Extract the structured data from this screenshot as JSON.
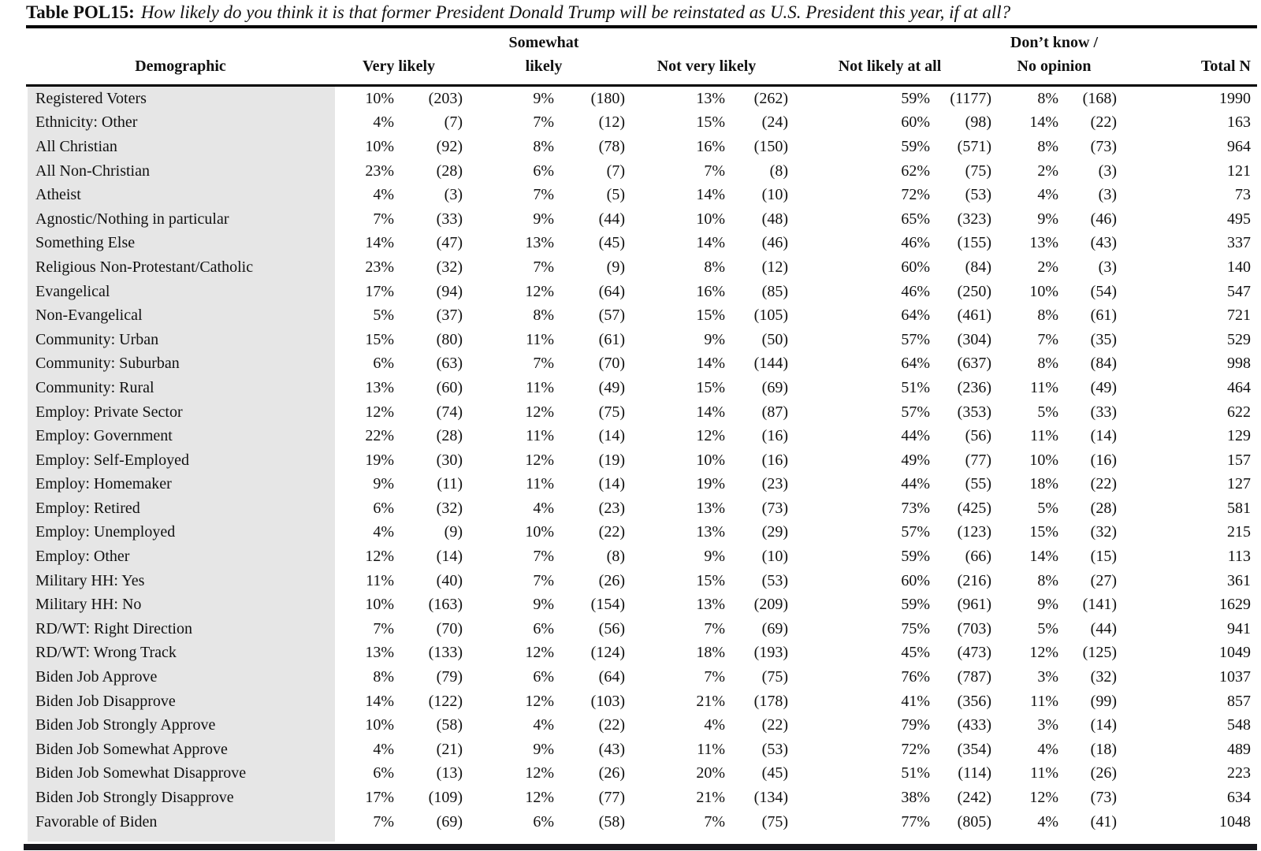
{
  "title": {
    "prefix": "Table POL15:",
    "question": "How likely do you think it is that former President Donald Trump will be reinstated as U.S. President this year, if at all?"
  },
  "header": {
    "demographic": "Demographic",
    "groups": [
      {
        "line1": "",
        "line2": "Very likely"
      },
      {
        "line1": "Somewhat",
        "line2": "likely"
      },
      {
        "line1": "",
        "line2": "Not very likely"
      },
      {
        "line1": "",
        "line2": "Not likely at all"
      },
      {
        "line1": "Don’t know /",
        "line2": "No opinion"
      }
    ],
    "total": "Total N"
  },
  "colors": {
    "row_label_bg": "#e6e6e6",
    "text": "#111111",
    "rule": "#000000"
  },
  "rows": [
    {
      "label": "Registered Voters",
      "values": [
        "10%",
        "(203)",
        "9%",
        "(180)",
        "13%",
        "(262)",
        "59%",
        "(1177)",
        "8%",
        "(168)"
      ],
      "total": "1990"
    },
    {
      "label": "Ethnicity: Other",
      "values": [
        "4%",
        "(7)",
        "7%",
        "(12)",
        "15%",
        "(24)",
        "60%",
        "(98)",
        "14%",
        "(22)"
      ],
      "total": "163"
    },
    {
      "label": "All Christian",
      "values": [
        "10%",
        "(92)",
        "8%",
        "(78)",
        "16%",
        "(150)",
        "59%",
        "(571)",
        "8%",
        "(73)"
      ],
      "total": "964"
    },
    {
      "label": "All Non-Christian",
      "values": [
        "23%",
        "(28)",
        "6%",
        "(7)",
        "7%",
        "(8)",
        "62%",
        "(75)",
        "2%",
        "(3)"
      ],
      "total": "121"
    },
    {
      "label": "Atheist",
      "values": [
        "4%",
        "(3)",
        "7%",
        "(5)",
        "14%",
        "(10)",
        "72%",
        "(53)",
        "4%",
        "(3)"
      ],
      "total": "73"
    },
    {
      "label": "Agnostic/Nothing in particular",
      "values": [
        "7%",
        "(33)",
        "9%",
        "(44)",
        "10%",
        "(48)",
        "65%",
        "(323)",
        "9%",
        "(46)"
      ],
      "total": "495"
    },
    {
      "label": "Something Else",
      "values": [
        "14%",
        "(47)",
        "13%",
        "(45)",
        "14%",
        "(46)",
        "46%",
        "(155)",
        "13%",
        "(43)"
      ],
      "total": "337"
    },
    {
      "label": "Religious Non-Protestant/Catholic",
      "values": [
        "23%",
        "(32)",
        "7%",
        "(9)",
        "8%",
        "(12)",
        "60%",
        "(84)",
        "2%",
        "(3)"
      ],
      "total": "140"
    },
    {
      "label": "Evangelical",
      "values": [
        "17%",
        "(94)",
        "12%",
        "(64)",
        "16%",
        "(85)",
        "46%",
        "(250)",
        "10%",
        "(54)"
      ],
      "total": "547"
    },
    {
      "label": "Non-Evangelical",
      "values": [
        "5%",
        "(37)",
        "8%",
        "(57)",
        "15%",
        "(105)",
        "64%",
        "(461)",
        "8%",
        "(61)"
      ],
      "total": "721"
    },
    {
      "label": "Community: Urban",
      "values": [
        "15%",
        "(80)",
        "11%",
        "(61)",
        "9%",
        "(50)",
        "57%",
        "(304)",
        "7%",
        "(35)"
      ],
      "total": "529"
    },
    {
      "label": "Community: Suburban",
      "values": [
        "6%",
        "(63)",
        "7%",
        "(70)",
        "14%",
        "(144)",
        "64%",
        "(637)",
        "8%",
        "(84)"
      ],
      "total": "998"
    },
    {
      "label": "Community: Rural",
      "values": [
        "13%",
        "(60)",
        "11%",
        "(49)",
        "15%",
        "(69)",
        "51%",
        "(236)",
        "11%",
        "(49)"
      ],
      "total": "464"
    },
    {
      "label": "Employ: Private Sector",
      "values": [
        "12%",
        "(74)",
        "12%",
        "(75)",
        "14%",
        "(87)",
        "57%",
        "(353)",
        "5%",
        "(33)"
      ],
      "total": "622"
    },
    {
      "label": "Employ: Government",
      "values": [
        "22%",
        "(28)",
        "11%",
        "(14)",
        "12%",
        "(16)",
        "44%",
        "(56)",
        "11%",
        "(14)"
      ],
      "total": "129"
    },
    {
      "label": "Employ: Self-Employed",
      "values": [
        "19%",
        "(30)",
        "12%",
        "(19)",
        "10%",
        "(16)",
        "49%",
        "(77)",
        "10%",
        "(16)"
      ],
      "total": "157"
    },
    {
      "label": "Employ: Homemaker",
      "values": [
        "9%",
        "(11)",
        "11%",
        "(14)",
        "19%",
        "(23)",
        "44%",
        "(55)",
        "18%",
        "(22)"
      ],
      "total": "127"
    },
    {
      "label": "Employ: Retired",
      "values": [
        "6%",
        "(32)",
        "4%",
        "(23)",
        "13%",
        "(73)",
        "73%",
        "(425)",
        "5%",
        "(28)"
      ],
      "total": "581"
    },
    {
      "label": "Employ: Unemployed",
      "values": [
        "4%",
        "(9)",
        "10%",
        "(22)",
        "13%",
        "(29)",
        "57%",
        "(123)",
        "15%",
        "(32)"
      ],
      "total": "215"
    },
    {
      "label": "Employ: Other",
      "values": [
        "12%",
        "(14)",
        "7%",
        "(8)",
        "9%",
        "(10)",
        "59%",
        "(66)",
        "14%",
        "(15)"
      ],
      "total": "113"
    },
    {
      "label": "Military HH: Yes",
      "values": [
        "11%",
        "(40)",
        "7%",
        "(26)",
        "15%",
        "(53)",
        "60%",
        "(216)",
        "8%",
        "(27)"
      ],
      "total": "361"
    },
    {
      "label": "Military HH: No",
      "values": [
        "10%",
        "(163)",
        "9%",
        "(154)",
        "13%",
        "(209)",
        "59%",
        "(961)",
        "9%",
        "(141)"
      ],
      "total": "1629"
    },
    {
      "label": "RD/WT: Right Direction",
      "values": [
        "7%",
        "(70)",
        "6%",
        "(56)",
        "7%",
        "(69)",
        "75%",
        "(703)",
        "5%",
        "(44)"
      ],
      "total": "941"
    },
    {
      "label": "RD/WT: Wrong Track",
      "values": [
        "13%",
        "(133)",
        "12%",
        "(124)",
        "18%",
        "(193)",
        "45%",
        "(473)",
        "12%",
        "(125)"
      ],
      "total": "1049"
    },
    {
      "label": "Biden Job Approve",
      "values": [
        "8%",
        "(79)",
        "6%",
        "(64)",
        "7%",
        "(75)",
        "76%",
        "(787)",
        "3%",
        "(32)"
      ],
      "total": "1037"
    },
    {
      "label": "Biden Job Disapprove",
      "values": [
        "14%",
        "(122)",
        "12%",
        "(103)",
        "21%",
        "(178)",
        "41%",
        "(356)",
        "11%",
        "(99)"
      ],
      "total": "857"
    },
    {
      "label": "Biden Job Strongly Approve",
      "values": [
        "10%",
        "(58)",
        "4%",
        "(22)",
        "4%",
        "(22)",
        "79%",
        "(433)",
        "3%",
        "(14)"
      ],
      "total": "548"
    },
    {
      "label": "Biden Job Somewhat Approve",
      "values": [
        "4%",
        "(21)",
        "9%",
        "(43)",
        "11%",
        "(53)",
        "72%",
        "(354)",
        "4%",
        "(18)"
      ],
      "total": "489"
    },
    {
      "label": "Biden Job Somewhat Disapprove",
      "values": [
        "6%",
        "(13)",
        "12%",
        "(26)",
        "20%",
        "(45)",
        "51%",
        "(114)",
        "11%",
        "(26)"
      ],
      "total": "223"
    },
    {
      "label": "Biden Job Strongly Disapprove",
      "values": [
        "17%",
        "(109)",
        "12%",
        "(77)",
        "21%",
        "(134)",
        "38%",
        "(242)",
        "12%",
        "(73)"
      ],
      "total": "634"
    },
    {
      "label": "Favorable of Biden",
      "values": [
        "7%",
        "(69)",
        "6%",
        "(58)",
        "7%",
        "(75)",
        "77%",
        "(805)",
        "4%",
        "(41)"
      ],
      "total": "1048"
    }
  ]
}
